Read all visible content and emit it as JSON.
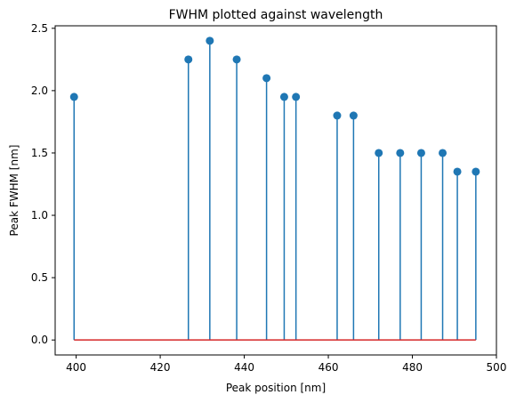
{
  "chart_data": {
    "type": "stem",
    "title": "FWHM plotted against wavelength",
    "xlabel": "Peak position [nm]",
    "ylabel": "Peak FWHM [nm]",
    "xlim": [
      395,
      500
    ],
    "ylim": [
      -0.12,
      2.52
    ],
    "xticks": [
      400,
      420,
      440,
      460,
      480,
      500
    ],
    "yticks": [
      0.0,
      0.5,
      1.0,
      1.5,
      2.0,
      2.5
    ],
    "x": [
      399.5,
      426.7,
      431.8,
      438.2,
      445.3,
      449.5,
      452.3,
      462.1,
      466.0,
      472.0,
      477.1,
      482.1,
      487.2,
      490.7,
      495.1
    ],
    "y": [
      1.95,
      2.25,
      2.4,
      2.25,
      2.1,
      1.95,
      1.95,
      1.8,
      1.8,
      1.5,
      1.5,
      1.5,
      1.5,
      1.35,
      1.35
    ],
    "baseline": 0,
    "colors": {
      "stem": "#1f77b4",
      "marker": "#1f77b4",
      "baseline": "#d62728"
    },
    "grid": false
  }
}
